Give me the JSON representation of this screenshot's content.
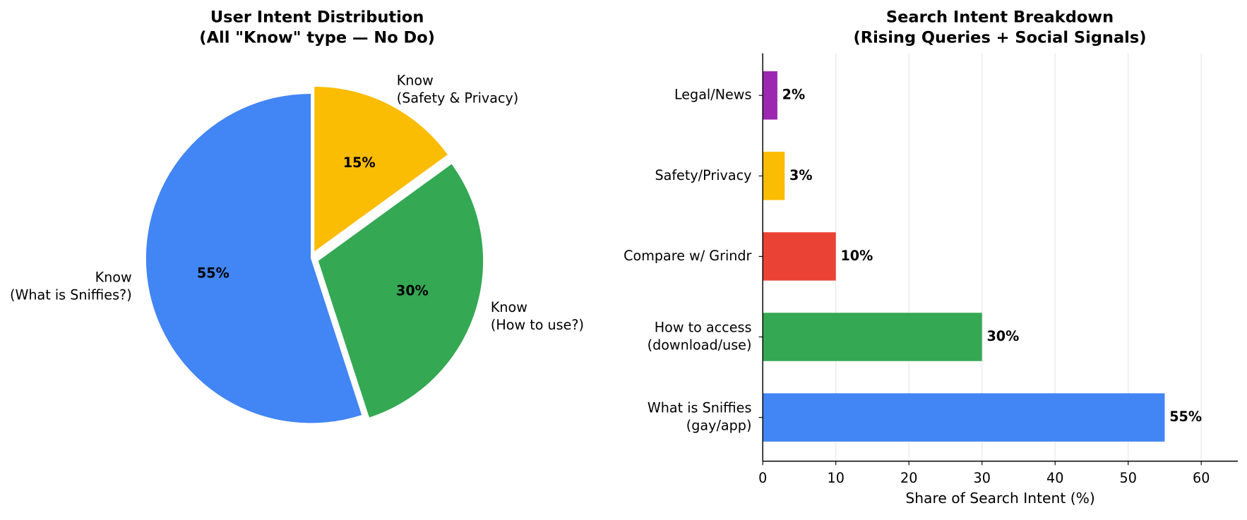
{
  "chart_data": [
    {
      "type": "pie",
      "title": [
        "User Intent Distribution",
        "(All \"Know\" type — No Do)"
      ],
      "labels": [
        [
          "Know",
          "(What is Sniffies?)"
        ],
        [
          "Know",
          "(How to use?)"
        ],
        [
          "Know",
          "(Safety & Privacy)"
        ]
      ],
      "values": [
        55,
        30,
        15
      ],
      "value_labels": [
        "55%",
        "30%",
        "15%"
      ],
      "colors": [
        "#4285F4",
        "#34A853",
        "#FBBC04"
      ]
    },
    {
      "type": "barh",
      "title": [
        "Search Intent Breakdown",
        "(Rising Queries + Social Signals)"
      ],
      "categories": [
        [
          "What is Sniffies",
          "(gay/app)"
        ],
        [
          "How to access",
          "(download/use)"
        ],
        [
          "Compare w/ Grindr"
        ],
        [
          "Safety/Privacy"
        ],
        [
          "Legal/News"
        ]
      ],
      "values": [
        55,
        30,
        10,
        3,
        2
      ],
      "value_labels": [
        "55%",
        "30%",
        "10%",
        "3%",
        "2%"
      ],
      "colors": [
        "#4285F4",
        "#34A853",
        "#EA4335",
        "#FBBC04",
        "#9C27B0"
      ],
      "xlabel": "Share of Search Intent (%)",
      "xlim": [
        0,
        65
      ],
      "xticks": [
        0,
        10,
        20,
        30,
        40,
        50,
        60
      ],
      "grid": true
    }
  ]
}
